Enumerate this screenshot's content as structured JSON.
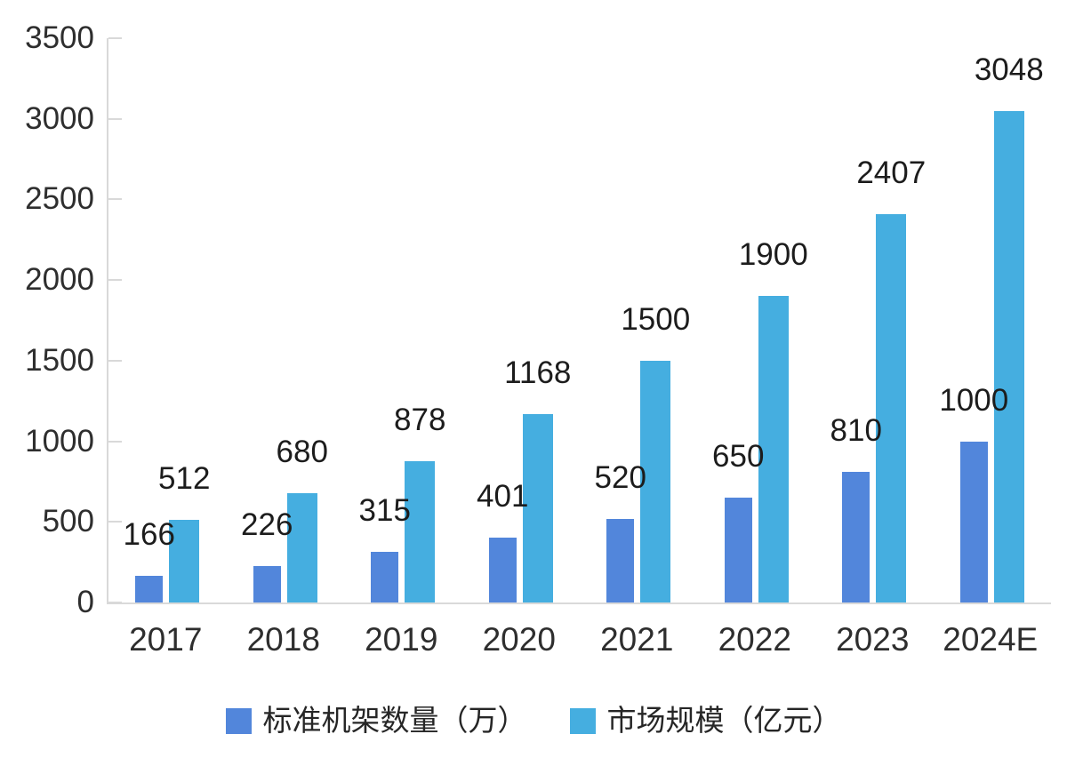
{
  "chart_data": {
    "type": "bar",
    "title": "",
    "categories": [
      "2017",
      "2018",
      "2019",
      "2020",
      "2021",
      "2022",
      "2023",
      "2024E"
    ],
    "series": [
      {
        "name": "标准机架数量（万）",
        "color": "#5286DB",
        "values": [
          166,
          226,
          315,
          401,
          520,
          650,
          810,
          1000
        ]
      },
      {
        "name": "市场规模（亿元）",
        "color": "#45AEE0",
        "values": [
          512,
          680,
          878,
          1168,
          1500,
          1900,
          2407,
          3048
        ]
      }
    ],
    "y_axis": {
      "min": 0,
      "max": 3500,
      "step": 500,
      "ticks": [
        0,
        500,
        1000,
        1500,
        2000,
        2500,
        3000,
        3500
      ]
    },
    "xlabel": "",
    "ylabel": "",
    "grid": false,
    "data_labels": true,
    "legend_position": "bottom",
    "axis_color": "#D9D9D9",
    "tick_text_color": "#2E2E2E",
    "value_text_color": "#1C1C1C"
  }
}
